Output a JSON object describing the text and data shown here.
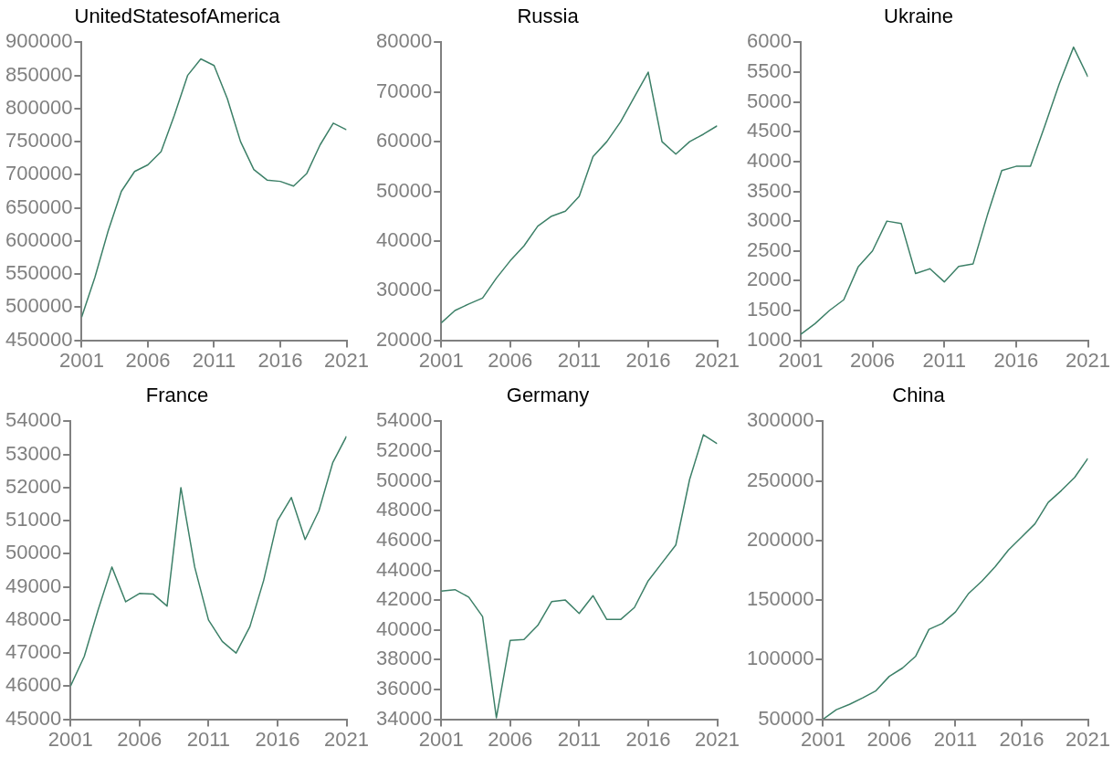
{
  "chart_data": [
    {
      "type": "line",
      "title": "UnitedStatesofAmerica",
      "x": [
        2001,
        2002,
        2003,
        2004,
        2005,
        2006,
        2007,
        2008,
        2009,
        2010,
        2011,
        2012,
        2013,
        2014,
        2015,
        2016,
        2017,
        2018,
        2019,
        2020,
        2021
      ],
      "values": [
        485000,
        545000,
        615000,
        675000,
        705000,
        715000,
        735000,
        790000,
        850000,
        875000,
        865000,
        815000,
        750000,
        708000,
        692000,
        690000,
        683000,
        702000,
        745000,
        778000,
        768000
      ],
      "color": "#3d8068",
      "xlim": [
        2001,
        2021
      ],
      "xticks": [
        2001,
        2006,
        2011,
        2016,
        2021
      ],
      "ylim": [
        450000,
        900000
      ],
      "yticks": [
        450000,
        500000,
        550000,
        600000,
        650000,
        700000,
        750000,
        800000,
        850000,
        900000
      ]
    },
    {
      "type": "line",
      "title": "Russia",
      "x": [
        2001,
        2002,
        2003,
        2004,
        2005,
        2006,
        2007,
        2008,
        2009,
        2010,
        2011,
        2012,
        2013,
        2014,
        2015,
        2016,
        2017,
        2018,
        2019,
        2020,
        2021
      ],
      "values": [
        23500,
        26000,
        27300,
        28500,
        32500,
        36000,
        39000,
        43000,
        45000,
        46000,
        49000,
        57000,
        60000,
        64000,
        69000,
        74000,
        60000,
        57500,
        60000,
        61500,
        63200
      ],
      "color": "#3d8068",
      "xlim": [
        2001,
        2021
      ],
      "xticks": [
        2001,
        2006,
        2011,
        2016,
        2021
      ],
      "ylim": [
        20000,
        80000
      ],
      "yticks": [
        20000,
        30000,
        40000,
        50000,
        60000,
        70000,
        80000
      ]
    },
    {
      "type": "line",
      "title": "Ukraine",
      "x": [
        2001,
        2002,
        2003,
        2004,
        2005,
        2006,
        2007,
        2008,
        2009,
        2010,
        2011,
        2012,
        2013,
        2014,
        2015,
        2016,
        2017,
        2018,
        2019,
        2020,
        2021
      ],
      "values": [
        1100,
        1280,
        1500,
        1680,
        2230,
        2500,
        3000,
        2960,
        2120,
        2200,
        1980,
        2240,
        2280,
        3100,
        3850,
        3920,
        3920,
        4600,
        5300,
        5920,
        5420
      ],
      "color": "#3d8068",
      "xlim": [
        2001,
        2021
      ],
      "xticks": [
        2001,
        2006,
        2011,
        2016,
        2021
      ],
      "ylim": [
        1000,
        6000
      ],
      "yticks": [
        1000,
        1500,
        2000,
        2500,
        3000,
        3500,
        4000,
        4500,
        5000,
        5500,
        6000
      ]
    },
    {
      "type": "line",
      "title": "France",
      "x": [
        2001,
        2002,
        2003,
        2004,
        2005,
        2006,
        2007,
        2008,
        2009,
        2010,
        2011,
        2012,
        2013,
        2014,
        2015,
        2016,
        2017,
        2018,
        2019,
        2020,
        2021
      ],
      "values": [
        46000,
        46900,
        48300,
        49600,
        48550,
        48800,
        48780,
        48420,
        52000,
        49600,
        48000,
        47350,
        47000,
        47800,
        49200,
        51000,
        51700,
        50430,
        51300,
        52750,
        53550
      ],
      "color": "#3d8068",
      "xlim": [
        2001,
        2021
      ],
      "xticks": [
        2001,
        2006,
        2011,
        2016,
        2021
      ],
      "ylim": [
        45000,
        54000
      ],
      "yticks": [
        45000,
        46000,
        47000,
        48000,
        49000,
        50000,
        51000,
        52000,
        53000,
        54000
      ]
    },
    {
      "type": "line",
      "title": "Germany",
      "x": [
        2001,
        2002,
        2003,
        2004,
        2005,
        2006,
        2007,
        2008,
        2009,
        2010,
        2011,
        2012,
        2013,
        2014,
        2015,
        2016,
        2017,
        2018,
        2019,
        2020,
        2021
      ],
      "values": [
        42600,
        42700,
        42200,
        40900,
        34100,
        39300,
        39350,
        40300,
        41900,
        42000,
        41100,
        42300,
        40700,
        40700,
        41500,
        43300,
        44500,
        45700,
        50100,
        53100,
        52500
      ],
      "color": "#3d8068",
      "xlim": [
        2001,
        2021
      ],
      "xticks": [
        2001,
        2006,
        2011,
        2016,
        2021
      ],
      "ylim": [
        34000,
        54000
      ],
      "yticks": [
        34000,
        36000,
        38000,
        40000,
        42000,
        44000,
        46000,
        48000,
        50000,
        52000,
        54000
      ]
    },
    {
      "type": "line",
      "title": "China",
      "x": [
        2001,
        2002,
        2003,
        2004,
        2005,
        2006,
        2007,
        2008,
        2009,
        2010,
        2011,
        2012,
        2013,
        2014,
        2015,
        2016,
        2017,
        2018,
        2019,
        2020,
        2021
      ],
      "values": [
        50000,
        58000,
        62500,
        68000,
        74000,
        86000,
        93000,
        103000,
        125500,
        130500,
        140000,
        155700,
        166000,
        178000,
        192000,
        203000,
        214000,
        232000,
        242000,
        253000,
        269000
      ],
      "color": "#3d8068",
      "xlim": [
        2001,
        2021
      ],
      "xticks": [
        2001,
        2006,
        2011,
        2016,
        2021
      ],
      "ylim": [
        50000,
        300000
      ],
      "yticks": [
        50000,
        100000,
        150000,
        200000,
        250000,
        300000
      ]
    }
  ]
}
